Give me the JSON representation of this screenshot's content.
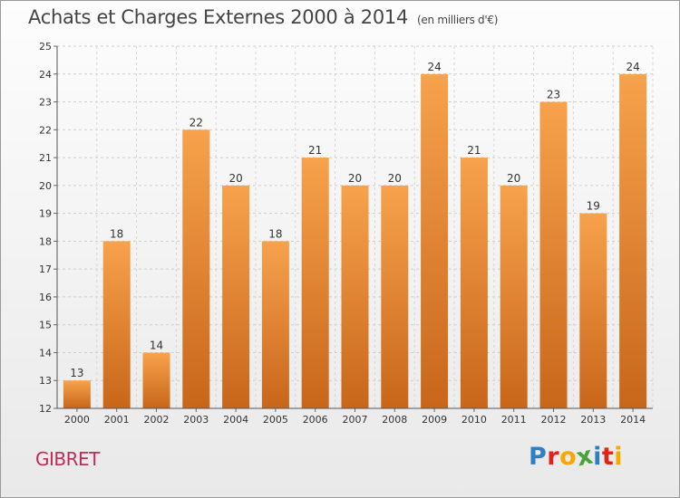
{
  "header": {
    "title": "Achats et Charges Externes 2000 à 2014",
    "subtitle": "(en milliers d'€)"
  },
  "footer": {
    "commune": "GIBRET",
    "logo_letters": [
      "P",
      "r",
      "o",
      "x",
      "i",
      "t",
      "i"
    ],
    "logo_colors": [
      "#2e7fc4",
      "#e2231a",
      "#f5a800",
      "#4aa33a",
      "#2e7fc4",
      "#e2231a",
      "#f5a800"
    ]
  },
  "chart_data": {
    "type": "bar",
    "categories": [
      "2000",
      "2001",
      "2002",
      "2003",
      "2004",
      "2005",
      "2006",
      "2007",
      "2008",
      "2009",
      "2010",
      "2011",
      "2012",
      "2013",
      "2014"
    ],
    "values": [
      13,
      18,
      14,
      22,
      20,
      18,
      21,
      20,
      20,
      24,
      21,
      20,
      23,
      19,
      24
    ],
    "ylim": [
      12,
      25
    ],
    "yticks": [
      12,
      13,
      14,
      15,
      16,
      17,
      18,
      19,
      20,
      21,
      22,
      23,
      24,
      25
    ],
    "grid": true,
    "bar_color_top": "#f7a24c",
    "bar_color_bottom": "#c8661a"
  }
}
